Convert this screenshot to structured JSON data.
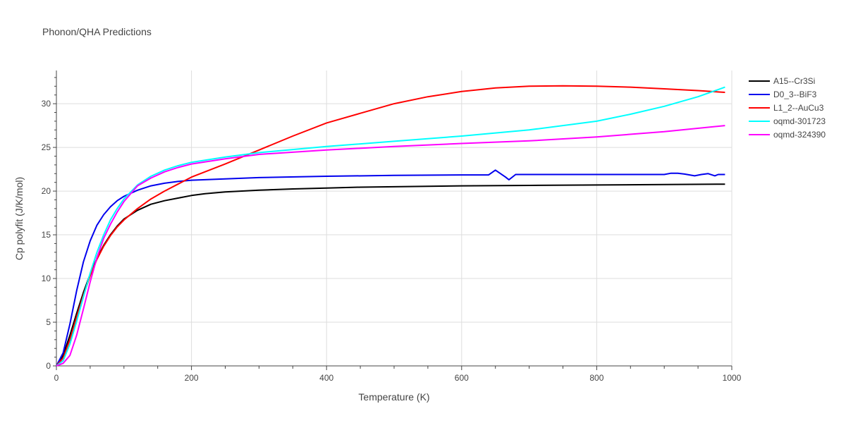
{
  "chart_data": {
    "type": "line",
    "title": "Phonon/QHA Predictions",
    "xlabel": "Temperature (K)",
    "ylabel": "Cp polyfit (J/K/mol)",
    "xlim": [
      0,
      1000
    ],
    "ylim": [
      0,
      33.8
    ],
    "xticks": [
      0,
      200,
      400,
      600,
      800,
      1000
    ],
    "yticks": [
      0,
      5,
      10,
      15,
      20,
      25,
      30
    ],
    "grid": true,
    "legend_position": "top-right",
    "series": [
      {
        "name": "A15--Cr3Si",
        "color": "#000000",
        "x": [
          0,
          10,
          20,
          30,
          40,
          50,
          60,
          70,
          80,
          90,
          100,
          120,
          140,
          160,
          180,
          200,
          220,
          250,
          300,
          350,
          400,
          450,
          500,
          600,
          700,
          800,
          900,
          990
        ],
        "y": [
          0,
          1.2,
          3.5,
          6.0,
          8.4,
          10.5,
          12.3,
          13.8,
          15.0,
          16.0,
          16.8,
          17.8,
          18.5,
          18.9,
          19.2,
          19.5,
          19.7,
          19.9,
          20.1,
          20.25,
          20.35,
          20.45,
          20.5,
          20.6,
          20.65,
          20.7,
          20.75,
          20.8
        ]
      },
      {
        "name": "D0_3--BiF3",
        "color": "#0000ee",
        "x": [
          0,
          10,
          20,
          30,
          40,
          50,
          60,
          70,
          80,
          90,
          100,
          120,
          140,
          160,
          180,
          200,
          250,
          300,
          400,
          500,
          600,
          640,
          650,
          665,
          670,
          680,
          700,
          800,
          900,
          910,
          920,
          930,
          945,
          955,
          965,
          975,
          980,
          990
        ],
        "y": [
          0,
          1.5,
          4.8,
          8.6,
          11.9,
          14.3,
          16.1,
          17.3,
          18.2,
          18.9,
          19.4,
          20.1,
          20.6,
          20.9,
          21.1,
          21.25,
          21.4,
          21.55,
          21.7,
          21.8,
          21.85,
          21.85,
          22.4,
          21.6,
          21.3,
          21.9,
          21.9,
          21.9,
          21.9,
          22.05,
          22.05,
          21.95,
          21.75,
          21.9,
          22.0,
          21.75,
          21.9,
          21.9
        ]
      },
      {
        "name": "L1_2--AuCu3",
        "color": "#ff0000",
        "x": [
          0,
          10,
          20,
          30,
          40,
          50,
          60,
          70,
          80,
          90,
          100,
          120,
          140,
          160,
          180,
          200,
          250,
          300,
          350,
          400,
          450,
          500,
          550,
          600,
          650,
          700,
          750,
          800,
          850,
          900,
          950,
          990
        ],
        "y": [
          0,
          0.9,
          3.0,
          5.6,
          8.1,
          10.3,
          12.2,
          13.7,
          14.9,
          15.9,
          16.7,
          18.0,
          19.1,
          20.0,
          20.8,
          21.6,
          23.1,
          24.7,
          26.3,
          27.8,
          28.9,
          30.0,
          30.8,
          31.4,
          31.8,
          32.0,
          32.05,
          32.0,
          31.9,
          31.7,
          31.5,
          31.3
        ]
      },
      {
        "name": "oqmd-301723",
        "color": "#00ffff",
        "x": [
          0,
          10,
          20,
          30,
          40,
          50,
          60,
          70,
          80,
          90,
          100,
          120,
          140,
          160,
          180,
          200,
          250,
          300,
          400,
          500,
          600,
          700,
          800,
          850,
          900,
          950,
          990
        ],
        "y": [
          0,
          0.6,
          2.5,
          5.1,
          7.9,
          10.6,
          13.0,
          15.0,
          16.7,
          18.0,
          19.1,
          20.7,
          21.7,
          22.4,
          22.9,
          23.3,
          23.9,
          24.4,
          25.1,
          25.7,
          26.3,
          27.0,
          28.0,
          28.8,
          29.7,
          30.8,
          31.9
        ]
      },
      {
        "name": "oqmd-324390",
        "color": "#ff00ff",
        "x": [
          0,
          10,
          20,
          30,
          40,
          50,
          60,
          70,
          80,
          90,
          100,
          120,
          140,
          160,
          180,
          200,
          250,
          300,
          400,
          500,
          600,
          700,
          800,
          900,
          990
        ],
        "y": [
          0,
          0.3,
          1.2,
          3.5,
          6.5,
          9.6,
          12.4,
          14.6,
          16.2,
          17.6,
          18.8,
          20.6,
          21.5,
          22.2,
          22.7,
          23.1,
          23.7,
          24.2,
          24.7,
          25.1,
          25.45,
          25.75,
          26.2,
          26.8,
          27.5
        ]
      }
    ]
  }
}
